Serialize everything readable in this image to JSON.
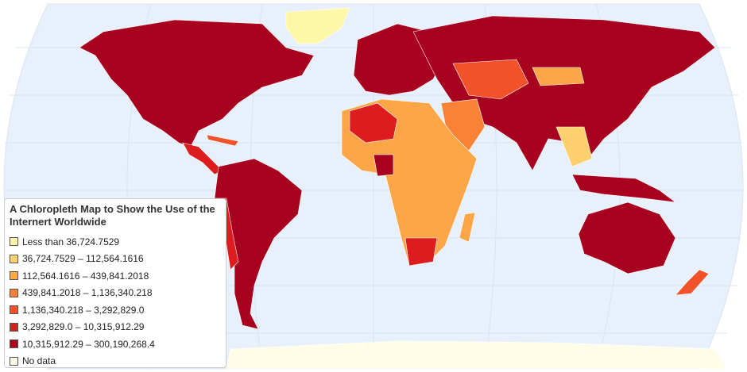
{
  "legend": {
    "title": "A Chloropleth Map to Show the Use of the Internert Worldwide",
    "items": [
      {
        "label": "Less than 36,724.7529",
        "color": "#fff7a8"
      },
      {
        "label": "36,724.7529 – 112,564.1616",
        "color": "#fed06e"
      },
      {
        "label": "112,564.1616 – 439,841.2018",
        "color": "#fca648"
      },
      {
        "label": "439,841.2018 – 1,136,340.218",
        "color": "#f98236"
      },
      {
        "label": "1,136,340.218 – 3,292,829.0",
        "color": "#f1522a"
      },
      {
        "label": "3,292,829.0 – 10,315,912.29",
        "color": "#dd1c1f"
      },
      {
        "label": "10,315,912.29 – 300,190,268.4",
        "color": "#a8001f"
      },
      {
        "label": "No data",
        "color": "#fffde8"
      }
    ]
  }
}
